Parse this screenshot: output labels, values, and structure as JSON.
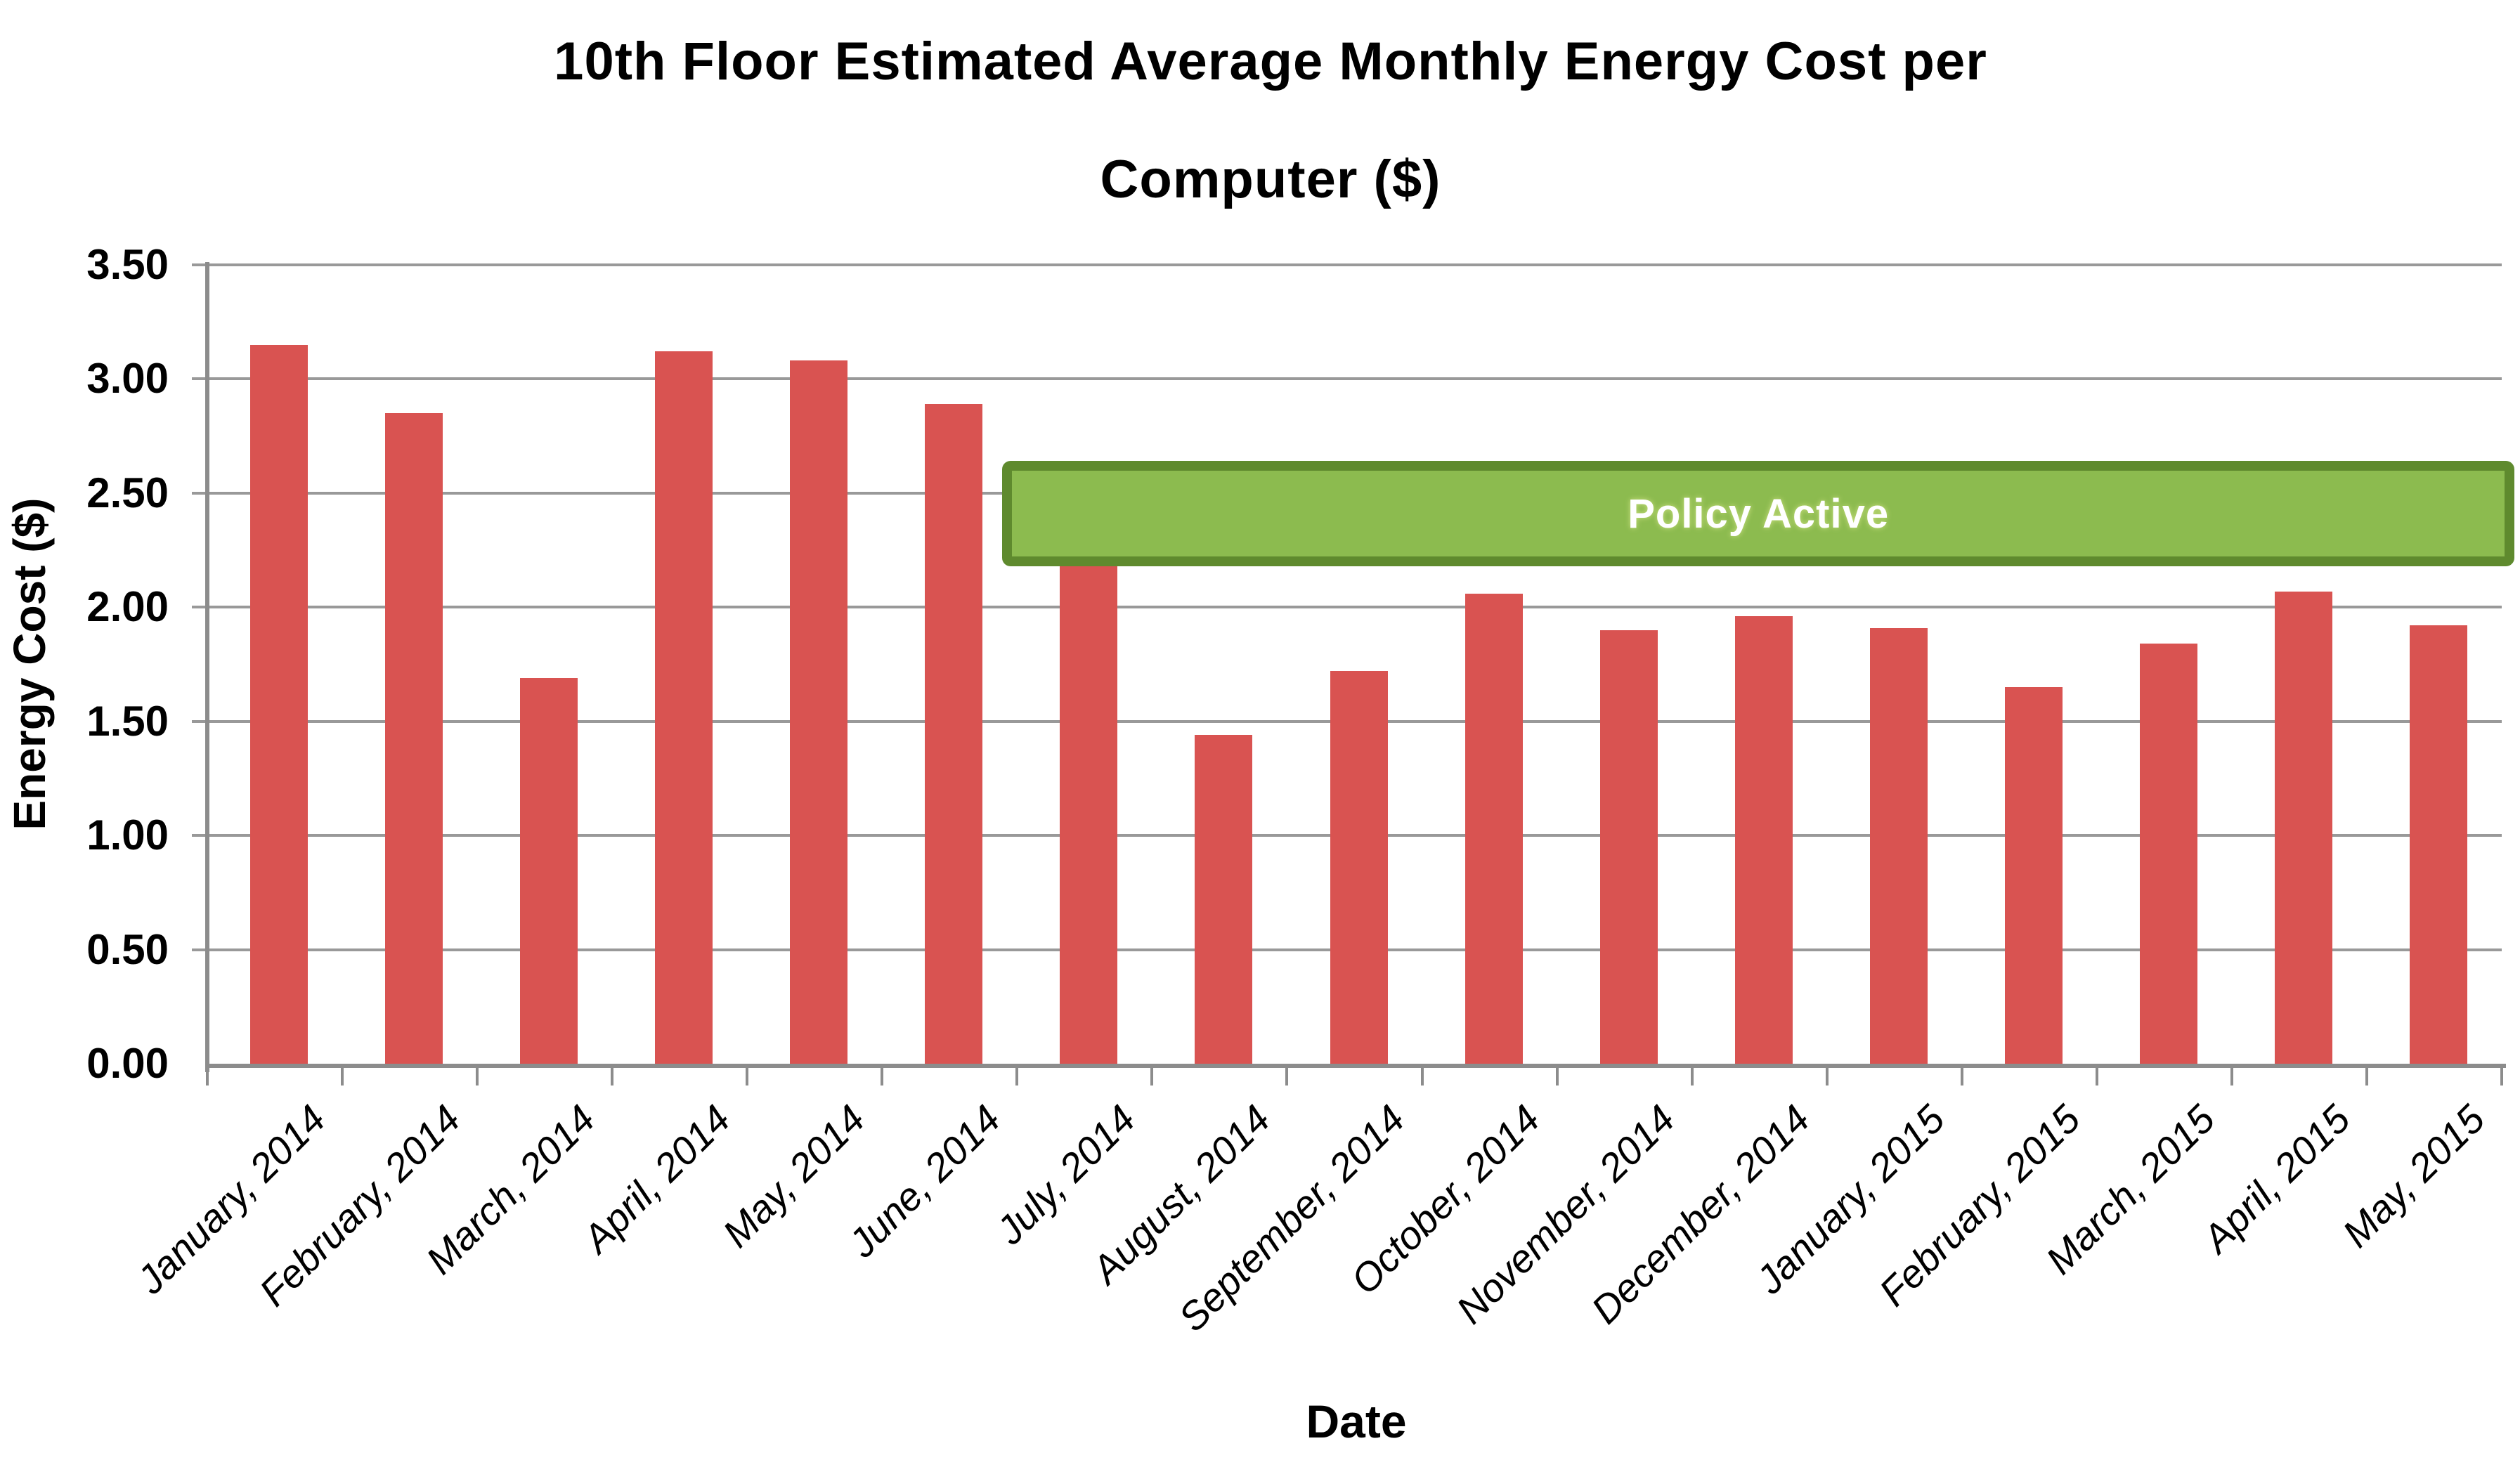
{
  "header": {
    "title_lines": [
      "10th Floor Estimated Average Monthly Energy Cost per",
      "Computer ($)"
    ]
  },
  "colors": {
    "bar": "#d95351",
    "banner_fill": "#8cbb4f",
    "banner_border": "#5f8a2e",
    "banner_text": "#ffffff",
    "gridline": "#999999",
    "axis": "#8c8c8c",
    "text": "#000000"
  },
  "chart_data": {
    "type": "bar",
    "title": "10th Floor Estimated Average Monthly Energy Cost per Computer ($)",
    "xlabel": "Date",
    "ylabel": "Energy Cost ($)",
    "ylim": [
      0,
      3.5
    ],
    "y_tick_step": 0.5,
    "y_ticks": [
      "0.00",
      "0.50",
      "1.00",
      "1.50",
      "2.00",
      "2.50",
      "3.00",
      "3.50"
    ],
    "grid": true,
    "legend": false,
    "categories": [
      "January, 2014",
      "February, 2014",
      "March, 2014",
      "April, 2014",
      "May, 2014",
      "June, 2014",
      "July, 2014",
      "August, 2014",
      "September, 2014",
      "October, 2014",
      "November, 2014",
      "December, 2014",
      "January, 2015",
      "February, 2015",
      "March, 2015",
      "April, 2015",
      "May, 2015"
    ],
    "values": [
      3.15,
      2.85,
      1.69,
      3.12,
      3.08,
      2.89,
      2.18,
      1.44,
      1.72,
      2.06,
      1.9,
      1.96,
      1.91,
      1.65,
      1.84,
      2.07,
      1.92
    ],
    "annotation": {
      "label": "Policy Active",
      "start_category": "July, 2014",
      "end_category": "May, 2015",
      "y_bottom": 2.18,
      "y_top": 2.64
    }
  }
}
